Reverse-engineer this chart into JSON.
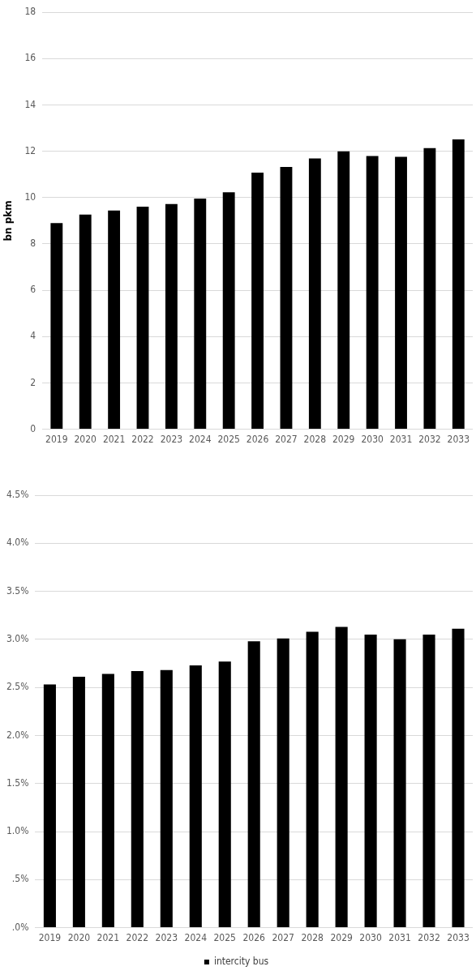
{
  "chart_data": [
    {
      "type": "bar",
      "ylabel": "bn pkm",
      "categories": [
        "2019",
        "2020",
        "2021",
        "2022",
        "2023",
        "2024",
        "2025",
        "2026",
        "2027",
        "2028",
        "2029",
        "2030",
        "2031",
        "2032",
        "2033"
      ],
      "series": [
        {
          "color": "#000000",
          "values": [
            8.9,
            9.27,
            9.44,
            9.61,
            9.72,
            9.96,
            10.23,
            11.08,
            11.32,
            11.69,
            12.0,
            11.8,
            11.76,
            12.14,
            12.51
          ]
        }
      ],
      "ylim": [
        0,
        18
      ],
      "yticks": [
        0,
        2,
        4,
        6,
        8,
        10,
        12,
        14,
        16,
        18
      ],
      "grid": "y",
      "legend": false
    },
    {
      "type": "bar",
      "categories": [
        "2019",
        "2020",
        "2021",
        "2022",
        "2023",
        "2024",
        "2025",
        "2026",
        "2027",
        "2028",
        "2029",
        "2030",
        "2031",
        "2032",
        "2033"
      ],
      "series": [
        {
          "name": "intercity bus",
          "color": "#000000",
          "values": [
            2.53,
            2.61,
            2.64,
            2.67,
            2.68,
            2.73,
            2.77,
            2.98,
            3.01,
            3.08,
            3.13,
            3.05,
            3.0,
            3.05,
            3.11
          ]
        }
      ],
      "ylim": [
        0,
        4.5
      ],
      "yticks": [
        {
          "value": 0,
          "label": ".0%"
        },
        {
          "value": 0.5,
          "label": ".5%"
        },
        {
          "value": 1,
          "label": "1.0%"
        },
        {
          "value": 1.5,
          "label": "1.5%"
        },
        {
          "value": 2,
          "label": "2.0%"
        },
        {
          "value": 2.5,
          "label": "2.5%"
        },
        {
          "value": 3,
          "label": "3.0%"
        },
        {
          "value": 3.5,
          "label": "3.5%"
        },
        {
          "value": 4,
          "label": "4.0%"
        },
        {
          "value": 4.5,
          "label": "4.5%"
        }
      ],
      "grid": "y",
      "legend": "bottom"
    }
  ]
}
